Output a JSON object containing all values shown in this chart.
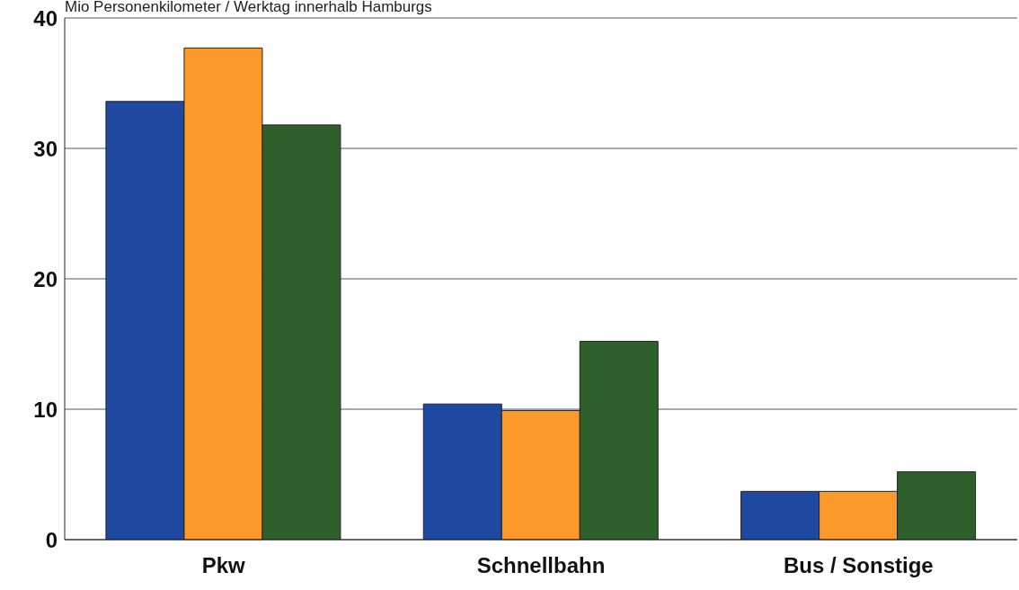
{
  "chart_data": {
    "type": "bar",
    "title": "Mio Personenkilometer / Werktag innerhalb Hamburgs",
    "categories": [
      "Pkw",
      "Schnellbahn",
      "Bus / Sonstige"
    ],
    "series": [
      {
        "color": "#1f48a0",
        "values": [
          33.6,
          10.4,
          3.7
        ]
      },
      {
        "color": "#fb9a2a",
        "values": [
          37.7,
          9.9,
          3.7
        ]
      },
      {
        "color": "#2f5f2a",
        "values": [
          31.8,
          15.2,
          5.2
        ]
      }
    ],
    "ylim": [
      0,
      40
    ],
    "yticks": [
      0,
      10,
      20,
      30,
      40
    ],
    "grid": "y",
    "legend": false
  }
}
